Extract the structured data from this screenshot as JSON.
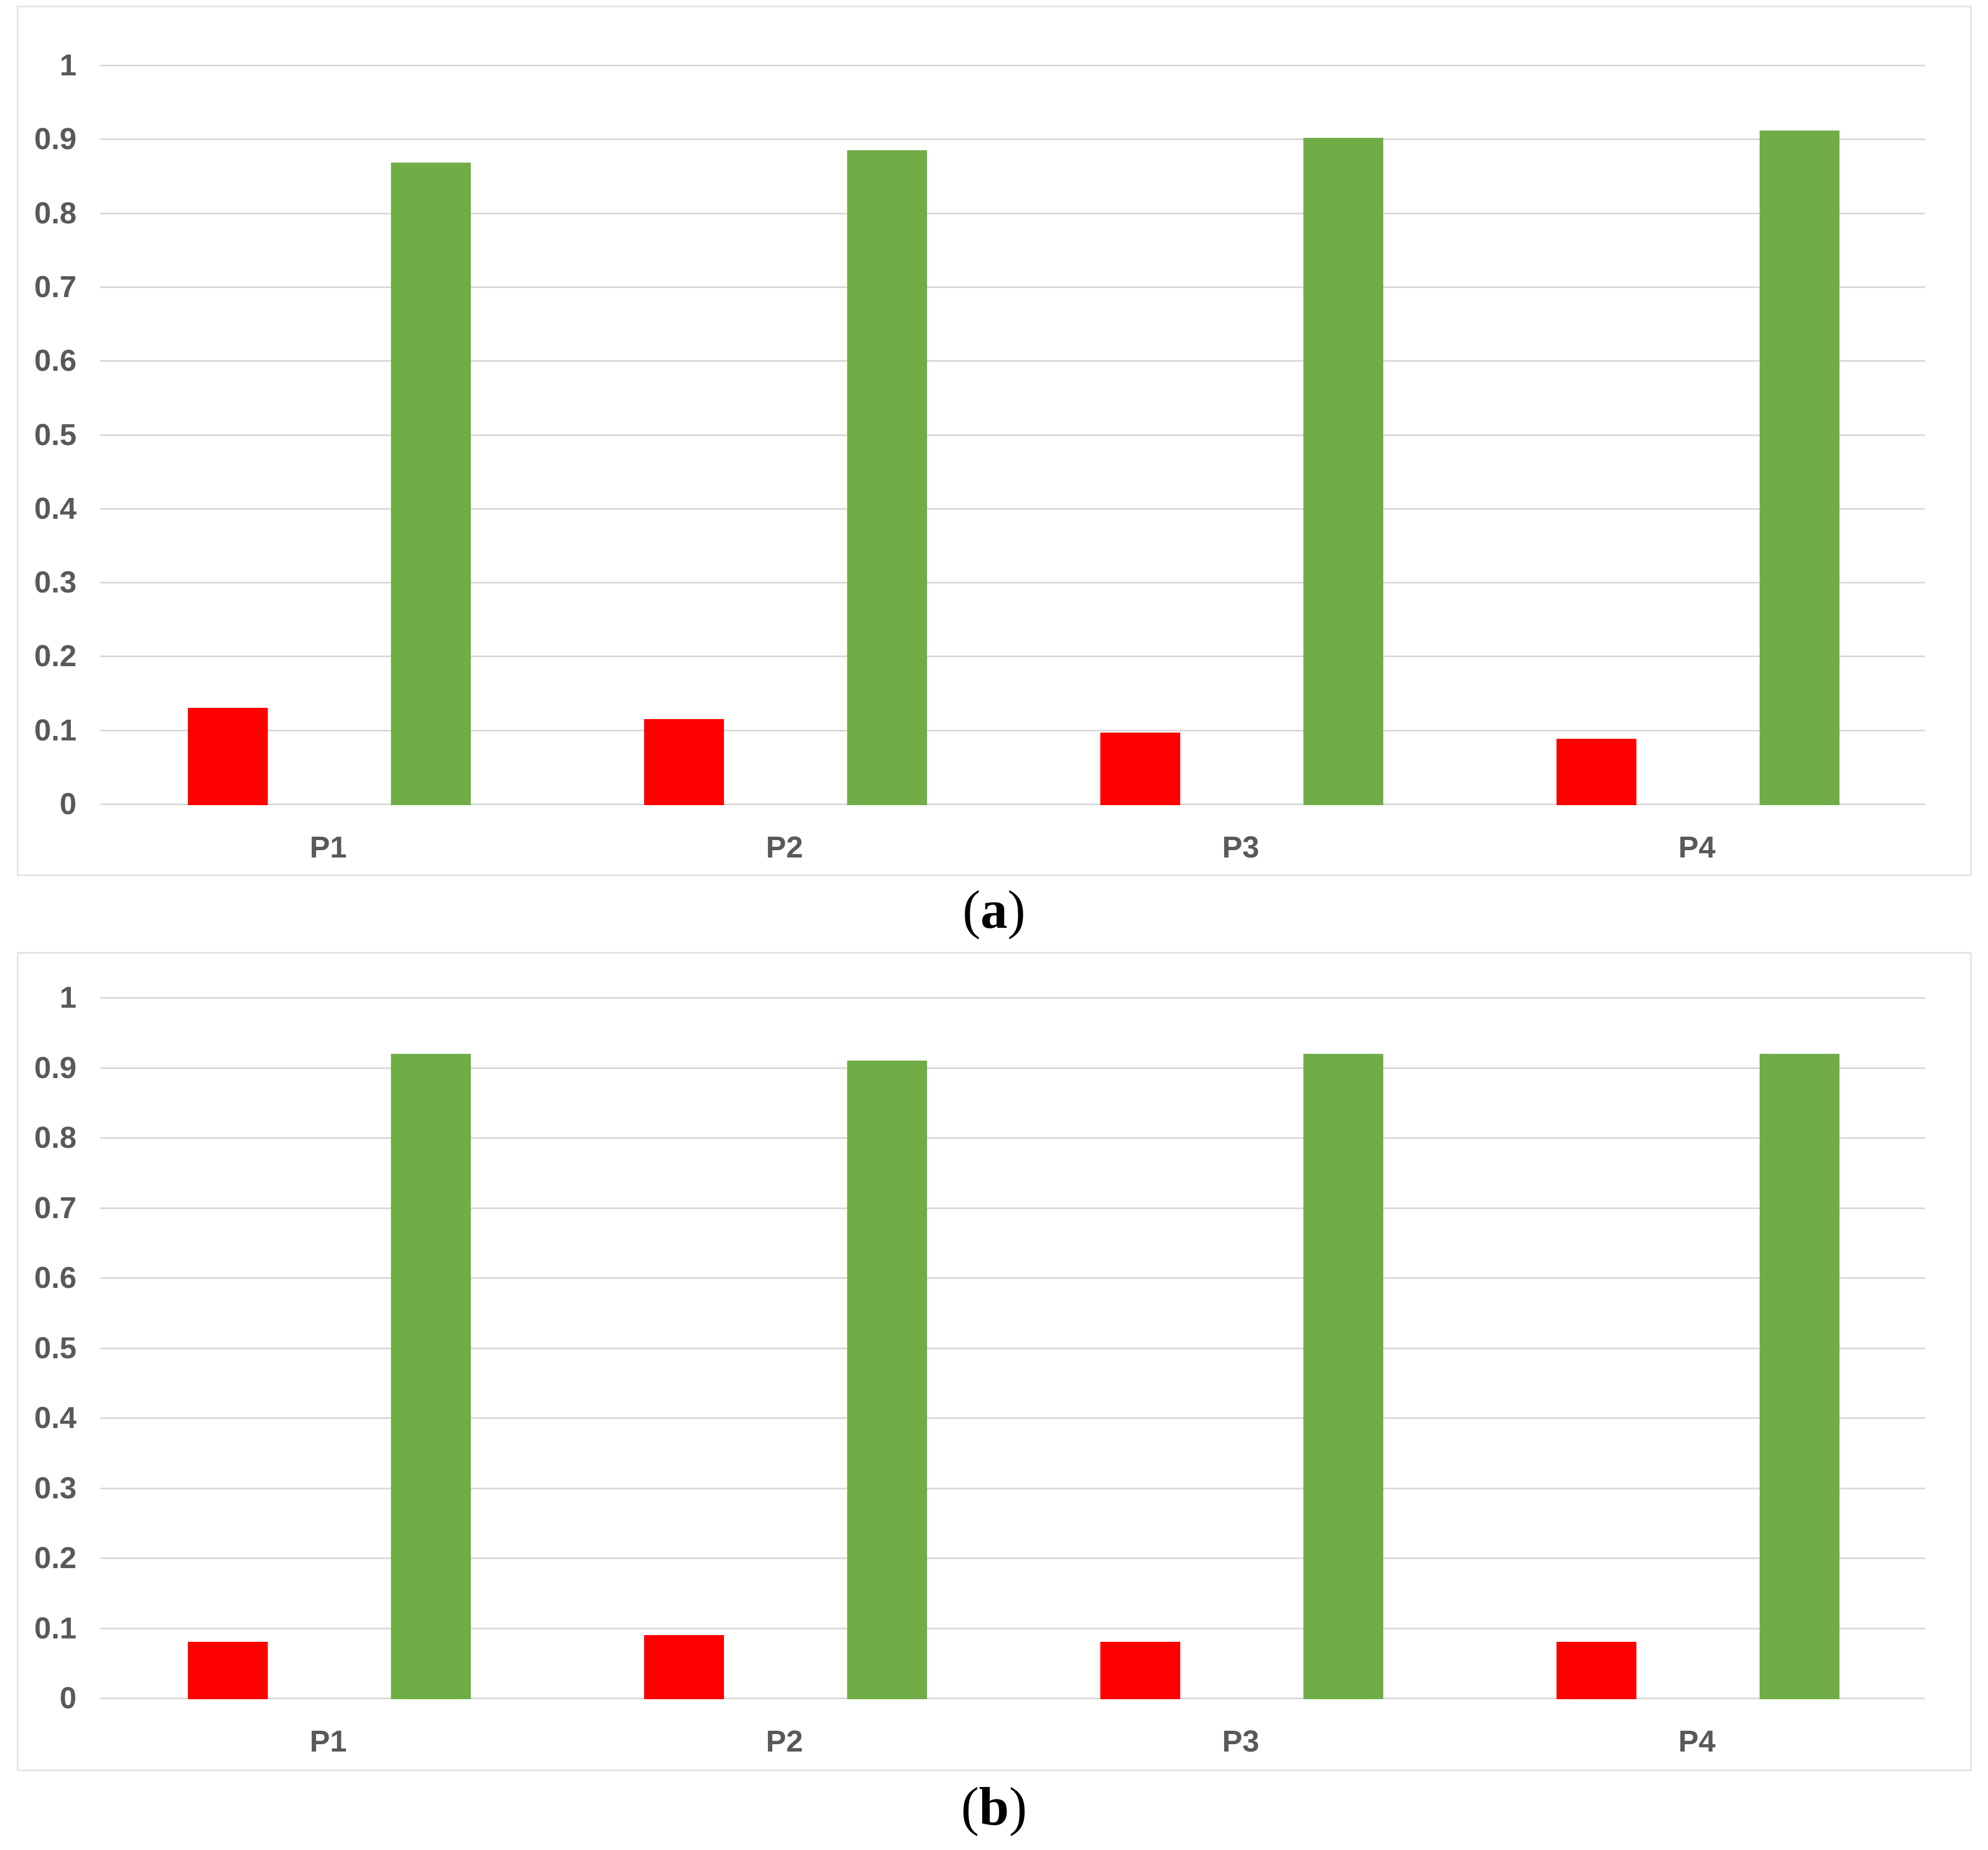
{
  "styles": {
    "background": "#ffffff",
    "grid_color": "#d9d9d9",
    "tick_label_color": "#595959",
    "panel_border_color": "#e4e4e4",
    "red_series_color": "#ff0000",
    "green_series_color": "#70ad47",
    "caption_color": "#000000"
  },
  "chart_data": [
    {
      "id": "a",
      "type": "bar",
      "caption_open": "(",
      "caption_letter": "a",
      "caption_close": ")",
      "categories": [
        "P1",
        "P2",
        "P3",
        "P4"
      ],
      "series": [
        {
          "name": "red",
          "color": "#ff0000",
          "values": [
            0.13,
            0.115,
            0.097,
            0.088
          ]
        },
        {
          "name": "green",
          "color": "#70ad47",
          "values": [
            0.868,
            0.885,
            0.902,
            0.912
          ]
        }
      ],
      "title": "",
      "xlabel": "",
      "ylabel": "",
      "ylim": [
        0,
        1
      ],
      "ytick_labels": [
        "1",
        "0.9",
        "0.8",
        "0.7",
        "0.6",
        "0.5",
        "0.4",
        "0.3",
        "0.2",
        "0.1",
        "0"
      ],
      "grid": true,
      "legend": false
    },
    {
      "id": "b",
      "type": "bar",
      "caption_open": "(",
      "caption_letter": "b",
      "caption_close": ")",
      "categories": [
        "P1",
        "P2",
        "P3",
        "P4"
      ],
      "series": [
        {
          "name": "red",
          "color": "#ff0000",
          "values": [
            0.08,
            0.09,
            0.08,
            0.08
          ]
        },
        {
          "name": "green",
          "color": "#70ad47",
          "values": [
            0.92,
            0.91,
            0.92,
            0.92
          ]
        }
      ],
      "title": "",
      "xlabel": "",
      "ylabel": "",
      "ylim": [
        0,
        1
      ],
      "ytick_labels": [
        "1",
        "0.9",
        "0.8",
        "0.7",
        "0.6",
        "0.5",
        "0.4",
        "0.3",
        "0.2",
        "0.1",
        "0"
      ],
      "grid": true,
      "legend": false
    }
  ]
}
